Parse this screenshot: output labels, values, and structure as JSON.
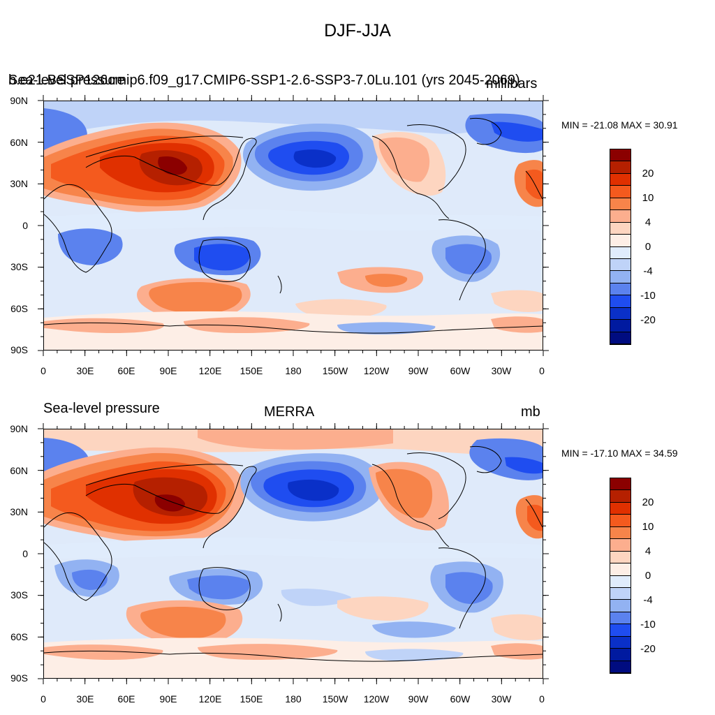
{
  "title": "DJF-JJA",
  "panels": [
    {
      "left_title": "Sea-level pressure",
      "overlap_title": "b.e21.BSSP126cmip6.f09_g17.CMIP6-SSP1-2.6-SSP3-7.0Lu.101 (yrs 2045-2069)",
      "center_title": "",
      "units": "millibars",
      "min_max": "MIN = -21.08 MAX =  30.91"
    },
    {
      "left_title": "Sea-level pressure",
      "overlap_title": "",
      "center_title": "MERRA",
      "units": "mb",
      "min_max": "MIN = -17.10 MAX =  34.59"
    }
  ],
  "lat_labels": [
    "90N",
    "60N",
    "30N",
    "0",
    "30S",
    "60S",
    "90S"
  ],
  "lon_labels": [
    "0",
    "30E",
    "60E",
    "90E",
    "120E",
    "150E",
    "180",
    "150W",
    "120W",
    "90W",
    "60W",
    "30W",
    "0"
  ],
  "colorbar_labels": [
    "20",
    "10",
    "4",
    "0",
    "-4",
    "-10",
    "-20"
  ],
  "colorbar_colors": [
    "#8b0000",
    "#b52000",
    "#e03000",
    "#f45a1e",
    "#f7844a",
    "#fcae8e",
    "#fdd5c0",
    "#fdeee6",
    "#e0ecfc",
    "#bfd3f8",
    "#92b2f2",
    "#5b82ee",
    "#1f4df0",
    "#0a30c8",
    "#001aa0",
    "#000c80"
  ]
}
